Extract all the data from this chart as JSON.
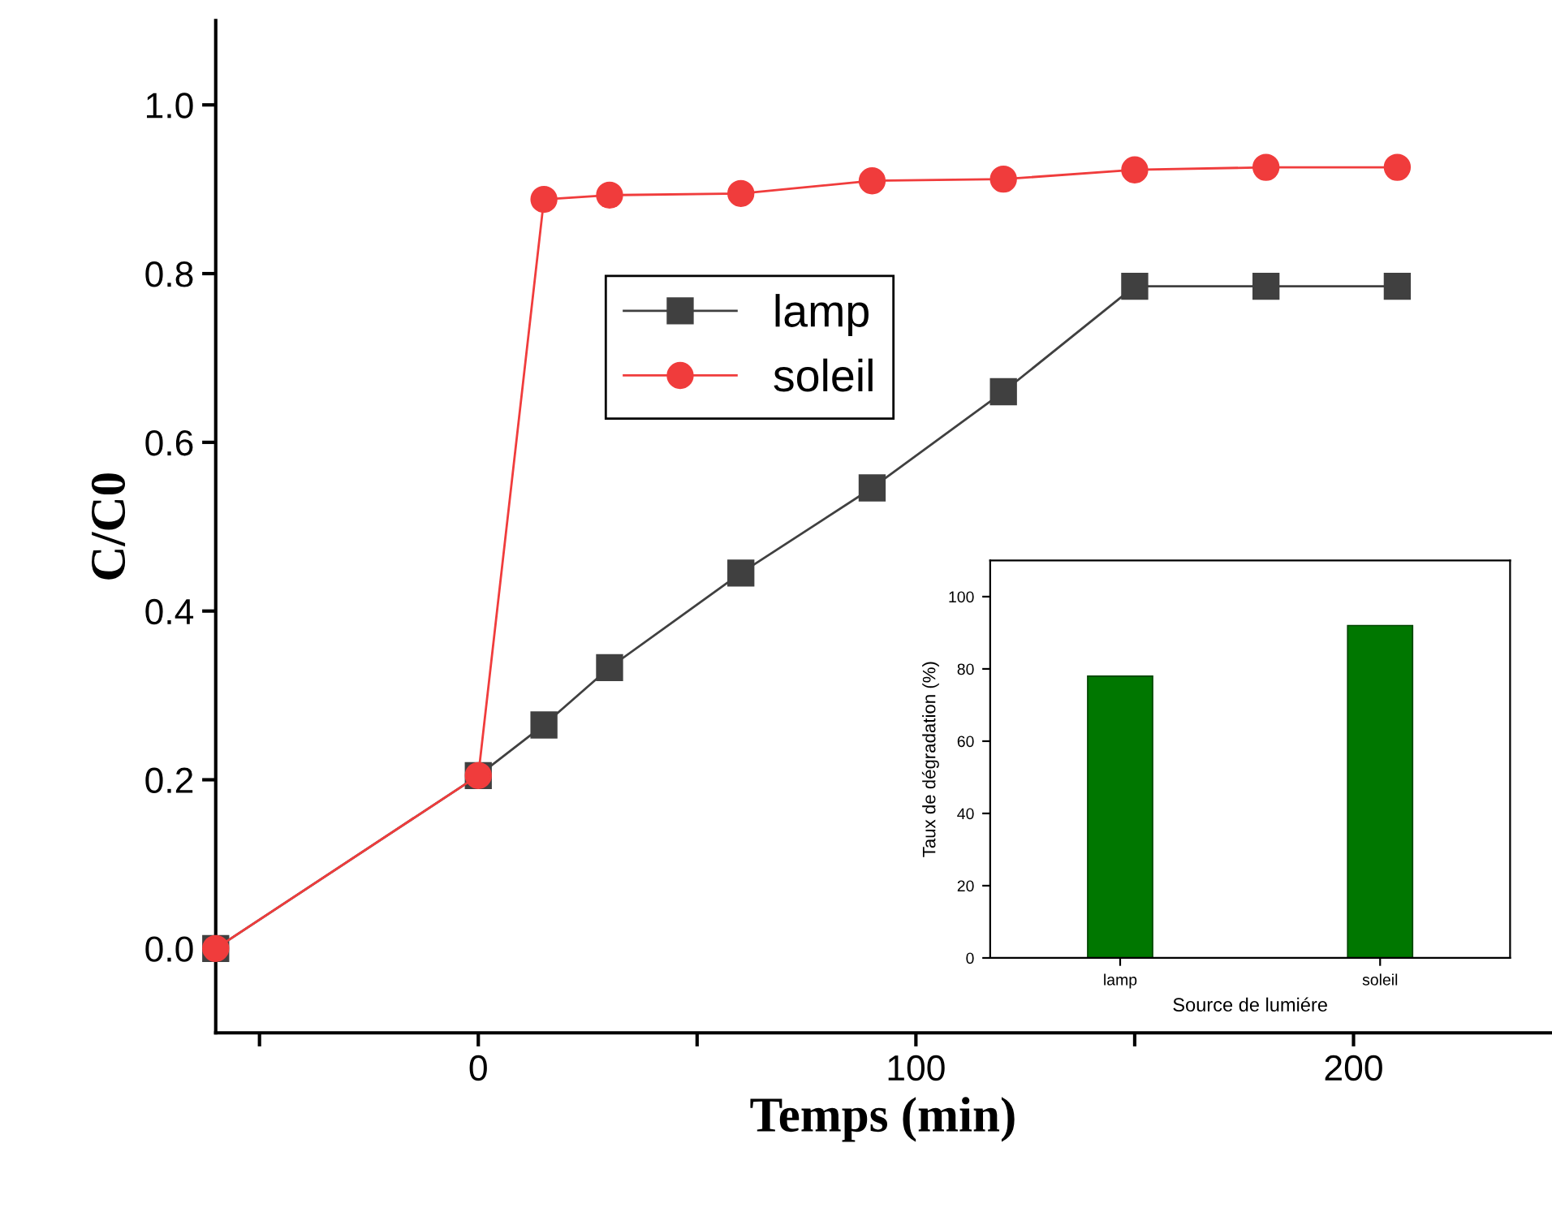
{
  "chart_data": [
    {
      "type": "line",
      "xlabel": "Temps (min)",
      "ylabel": "C/C0",
      "xlim": [
        -60,
        245
      ],
      "xticks": [
        {
          "value": -50,
          "label": null
        },
        0,
        {
          "value": 50,
          "label": null
        },
        100,
        {
          "value": 150,
          "label": null
        },
        200
      ],
      "ylim": [
        -0.1,
        1.1
      ],
      "yticks": [
        {
          "value": 0,
          "label": "0.0"
        },
        0.2,
        0.4,
        0.6,
        0.8,
        {
          "value": 1,
          "label": "1.0"
        }
      ],
      "series": [
        {
          "name": "lamp",
          "color": "#404040",
          "marker": "square",
          "x": [
            -60,
            0,
            15,
            30,
            60,
            90,
            120,
            150,
            180,
            210
          ],
          "values": [
            0,
            0.205,
            0.265,
            0.333,
            0.445,
            0.546,
            0.66,
            0.785,
            0.785,
            0.785
          ]
        },
        {
          "name": "soleil",
          "color": "#f03c3c",
          "marker": "circle",
          "x": [
            -60,
            0,
            15,
            30,
            60,
            90,
            120,
            150,
            180,
            210
          ],
          "values": [
            0,
            0.205,
            0.888,
            0.893,
            0.895,
            0.91,
            0.912,
            0.923,
            0.926,
            0.926
          ]
        }
      ],
      "legend": "top",
      "grid": false,
      "line_style": "solid"
    },
    {
      "type": "bar",
      "xlabel": "Source de lumiére",
      "ylabel": "Taux de dégradation (%)",
      "categories": [
        "lamp",
        "soleil"
      ],
      "values": [
        78,
        92
      ],
      "color": "#007700",
      "ylim": [
        0,
        110
      ],
      "yticks": [
        0,
        20,
        40,
        60,
        80,
        100
      ],
      "grid": false
    }
  ]
}
